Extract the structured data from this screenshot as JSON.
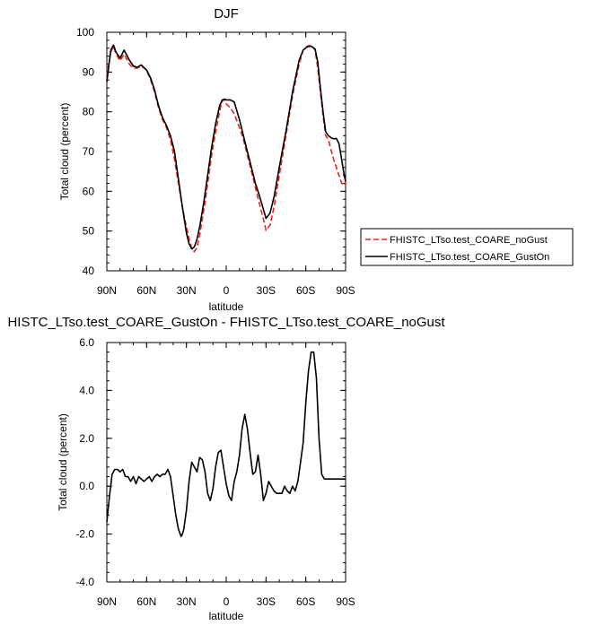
{
  "chart_data": [
    {
      "type": "line",
      "title": "DJF",
      "xlabel": "latitude",
      "ylabel": "Total cloud (percent)",
      "xlim": [
        90,
        -90
      ],
      "ylim": [
        40,
        100
      ],
      "xticks": [
        90,
        60,
        30,
        0,
        -30,
        -60,
        -90
      ],
      "xtick_labels": [
        "90N",
        "60N",
        "30N",
        "0",
        "30S",
        "60S",
        "90S"
      ],
      "yticks": [
        40,
        50,
        60,
        70,
        80,
        90,
        100
      ],
      "ytick_labels": [
        "40",
        "50",
        "60",
        "70",
        "80",
        "90",
        "100"
      ],
      "legend_position": "right",
      "series": [
        {
          "name": "FHISTC_LTso.test_COARE_noGust",
          "color": "#e8241c",
          "dash": true,
          "x": [
            90,
            87,
            85,
            83,
            80,
            77,
            73,
            70,
            67,
            64,
            60,
            57,
            54,
            51,
            48,
            45,
            42,
            39,
            36,
            33,
            30,
            28,
            26,
            24,
            22,
            20,
            17,
            14,
            11,
            8,
            5,
            3,
            1,
            0,
            -3,
            -6,
            -10,
            -13,
            -16,
            -19,
            -22,
            -25,
            -28,
            -30,
            -33,
            -36,
            -40,
            -45,
            -50,
            -55,
            -58,
            -61,
            -64,
            -67,
            -69,
            -71,
            -73,
            -75,
            -77,
            -79,
            -81,
            -83,
            -85,
            -87,
            -89,
            -90
          ],
          "y": [
            89,
            95,
            96.5,
            94.5,
            92.8,
            94.5,
            92,
            91,
            91,
            91.5,
            90.5,
            88,
            85,
            81,
            78,
            76,
            73,
            68,
            62,
            56,
            51,
            48,
            45.5,
            44.8,
            46,
            49,
            55,
            62,
            69,
            75,
            80,
            82.8,
            83,
            82,
            81,
            79.5,
            76,
            73,
            69,
            65,
            61,
            57,
            53,
            50.2,
            51.5,
            56,
            64,
            74,
            84,
            92,
            95.5,
            96.5,
            96.8,
            95.5,
            91,
            85,
            79,
            74,
            73,
            70.5,
            68,
            66,
            64,
            62,
            61.5,
            62.5
          ]
        },
        {
          "name": "FHISTC_LTso.test_COARE_GustOn",
          "color": "#000000",
          "dash": false,
          "x": [
            90,
            87,
            85,
            83,
            80,
            77,
            73,
            70,
            67,
            64,
            60,
            57,
            54,
            51,
            48,
            45,
            42,
            39,
            36,
            33,
            30,
            28,
            26,
            24,
            22,
            20,
            17,
            14,
            11,
            8,
            5,
            3,
            1,
            0,
            -3,
            -6,
            -10,
            -13,
            -16,
            -19,
            -22,
            -25,
            -28,
            -30,
            -33,
            -36,
            -40,
            -45,
            -50,
            -55,
            -58,
            -61,
            -64,
            -67,
            -69,
            -71,
            -73,
            -75,
            -77,
            -79,
            -81,
            -83,
            -85,
            -87,
            -89,
            -90
          ],
          "y": [
            87.5,
            95.5,
            96.8,
            95,
            93.5,
            95.5,
            93,
            91.5,
            91.2,
            91.8,
            90.5,
            88.5,
            85.5,
            81.5,
            78.5,
            76.5,
            74,
            70,
            63,
            56,
            49.5,
            46.8,
            45.5,
            46,
            48,
            51,
            57,
            64,
            71,
            77,
            81.5,
            83,
            83.2,
            83,
            83,
            82.5,
            78,
            74,
            70,
            66,
            62,
            59,
            55.5,
            53.2,
            54.5,
            58.5,
            66,
            75,
            85,
            93,
            95.5,
            96.3,
            96.5,
            95.8,
            92.5,
            86,
            80,
            75,
            74,
            73.5,
            73.2,
            73.3,
            72,
            68,
            64,
            62.5
          ]
        }
      ]
    },
    {
      "type": "line",
      "title": "HISTC_LTso.test_COARE_GustOn - FHISTC_LTso.test_COARE_noGust",
      "xlabel": "latitude",
      "ylabel": "Total cloud (percent)",
      "xlim": [
        90,
        -90
      ],
      "ylim": [
        -4,
        6
      ],
      "xticks": [
        90,
        60,
        30,
        0,
        -30,
        -60,
        -90
      ],
      "xtick_labels": [
        "90N",
        "60N",
        "30N",
        "0",
        "30S",
        "60S",
        "90S"
      ],
      "yticks": [
        -4,
        -2,
        0,
        2,
        4,
        6
      ],
      "ytick_labels": [
        "-4.0",
        "-2.0",
        "0.0",
        "2.0",
        "4.0",
        "6.0"
      ],
      "series": [
        {
          "color": "#000000",
          "dash": false,
          "x": [
            90,
            88,
            86,
            84,
            82,
            80,
            78,
            76,
            74,
            72,
            70,
            68,
            66,
            64,
            62,
            60,
            58,
            56,
            54,
            52,
            50,
            48,
            46,
            44,
            42,
            40,
            38,
            36,
            34,
            33,
            32,
            30,
            28,
            26,
            24,
            22,
            20,
            18,
            16,
            14,
            12,
            10,
            8,
            6,
            4,
            2,
            0,
            -2,
            -4,
            -6,
            -8,
            -10,
            -12,
            -14,
            -16,
            -18,
            -20,
            -22,
            -24,
            -26,
            -28,
            -30,
            -32,
            -34,
            -36,
            -38,
            -40,
            -42,
            -44,
            -46,
            -48,
            -50,
            -52,
            -54,
            -56,
            -58,
            -60,
            -62,
            -64,
            -66,
            -68,
            -70,
            -72,
            -74,
            -76,
            -78,
            -80,
            -82,
            -84,
            -86,
            -87,
            -88,
            -89,
            -90
          ],
          "y": [
            -1.5,
            -0.4,
            0.5,
            0.7,
            0.7,
            0.6,
            0.7,
            0.4,
            0.4,
            0.2,
            0.4,
            0.1,
            0.4,
            0.3,
            0.2,
            0.3,
            0.4,
            0.2,
            0.4,
            0.5,
            0.4,
            0.5,
            0.5,
            0.7,
            0.4,
            -0.4,
            -1.2,
            -1.8,
            -2.1,
            -2.0,
            -1.8,
            -1.0,
            0.2,
            1.0,
            0.8,
            0.6,
            1.2,
            1.1,
            0.6,
            -0.3,
            -0.6,
            -0.1,
            0.8,
            1.4,
            1.5,
            0.8,
            0.1,
            -0.4,
            -0.6,
            0.2,
            0.6,
            1.3,
            2.4,
            3.0,
            2.4,
            1.4,
            0.5,
            0.6,
            1.3,
            0.5,
            -0.6,
            -0.3,
            0.2,
            0.0,
            -0.2,
            -0.3,
            -0.3,
            -0.3,
            0.0,
            -0.2,
            -0.3,
            0.0,
            -0.2,
            0.2,
            1.0,
            1.8,
            3.5,
            4.8,
            5.6,
            5.6,
            4.5,
            2.0,
            0.5,
            0.3,
            0.3,
            0.3,
            0.3,
            0.3,
            0.3,
            0.3,
            0.3,
            0.3,
            0.3,
            0.3
          ]
        }
      ]
    }
  ]
}
